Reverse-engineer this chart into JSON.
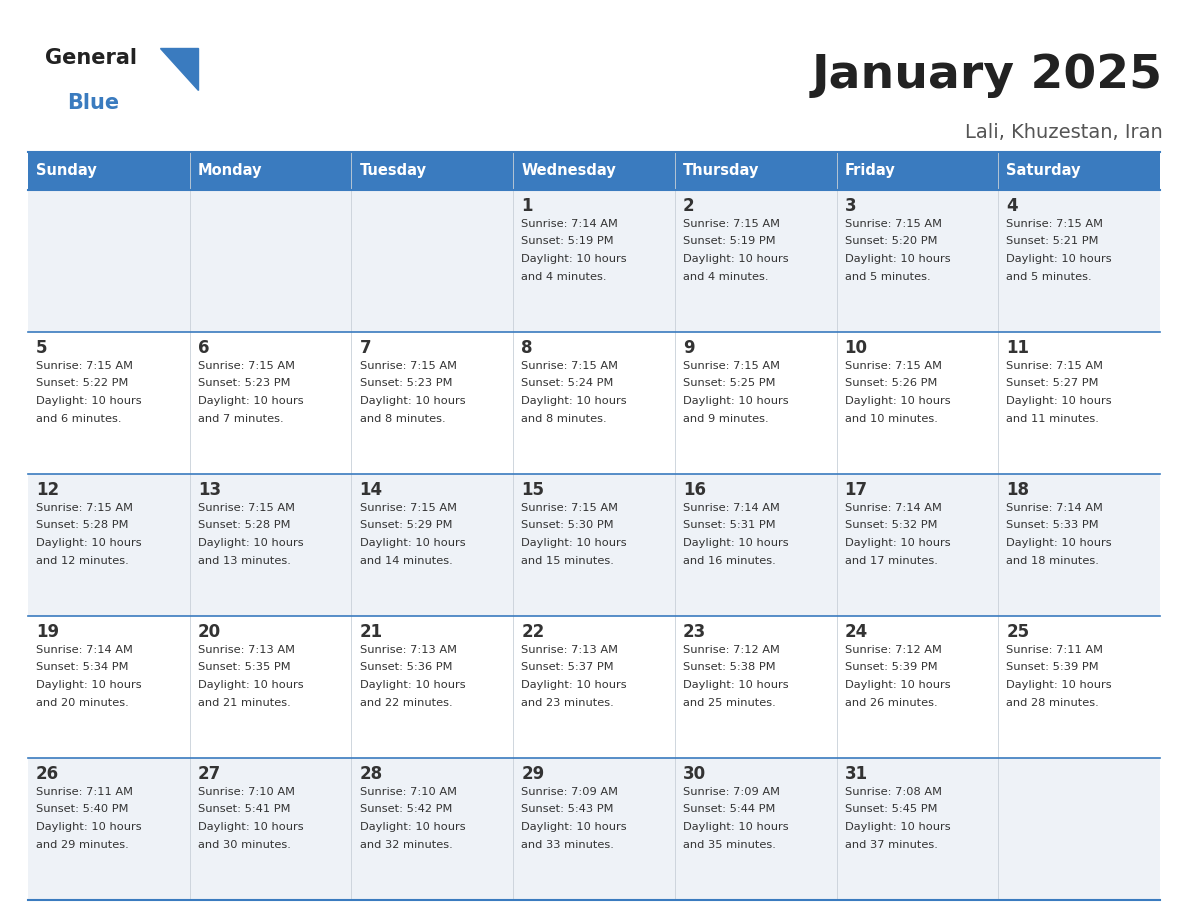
{
  "title": "January 2025",
  "subtitle": "Lali, Khuzestan, Iran",
  "days_of_week": [
    "Sunday",
    "Monday",
    "Tuesday",
    "Wednesday",
    "Thursday",
    "Friday",
    "Saturday"
  ],
  "header_bg": "#3a7bbf",
  "header_text": "#ffffff",
  "row_bg_odd": "#eef2f7",
  "row_bg_even": "#ffffff",
  "cell_text": "#333333",
  "border_color": "#3a7bbf",
  "title_color": "#222222",
  "subtitle_color": "#555555",
  "calendar_data": [
    [
      null,
      null,
      null,
      {
        "day": 1,
        "sunrise": "7:14 AM",
        "sunset": "5:19 PM",
        "daylight_line1": "Daylight: 10 hours",
        "daylight_line2": "and 4 minutes."
      },
      {
        "day": 2,
        "sunrise": "7:15 AM",
        "sunset": "5:19 PM",
        "daylight_line1": "Daylight: 10 hours",
        "daylight_line2": "and 4 minutes."
      },
      {
        "day": 3,
        "sunrise": "7:15 AM",
        "sunset": "5:20 PM",
        "daylight_line1": "Daylight: 10 hours",
        "daylight_line2": "and 5 minutes."
      },
      {
        "day": 4,
        "sunrise": "7:15 AM",
        "sunset": "5:21 PM",
        "daylight_line1": "Daylight: 10 hours",
        "daylight_line2": "and 5 minutes."
      }
    ],
    [
      {
        "day": 5,
        "sunrise": "7:15 AM",
        "sunset": "5:22 PM",
        "daylight_line1": "Daylight: 10 hours",
        "daylight_line2": "and 6 minutes."
      },
      {
        "day": 6,
        "sunrise": "7:15 AM",
        "sunset": "5:23 PM",
        "daylight_line1": "Daylight: 10 hours",
        "daylight_line2": "and 7 minutes."
      },
      {
        "day": 7,
        "sunrise": "7:15 AM",
        "sunset": "5:23 PM",
        "daylight_line1": "Daylight: 10 hours",
        "daylight_line2": "and 8 minutes."
      },
      {
        "day": 8,
        "sunrise": "7:15 AM",
        "sunset": "5:24 PM",
        "daylight_line1": "Daylight: 10 hours",
        "daylight_line2": "and 8 minutes."
      },
      {
        "day": 9,
        "sunrise": "7:15 AM",
        "sunset": "5:25 PM",
        "daylight_line1": "Daylight: 10 hours",
        "daylight_line2": "and 9 minutes."
      },
      {
        "day": 10,
        "sunrise": "7:15 AM",
        "sunset": "5:26 PM",
        "daylight_line1": "Daylight: 10 hours",
        "daylight_line2": "and 10 minutes."
      },
      {
        "day": 11,
        "sunrise": "7:15 AM",
        "sunset": "5:27 PM",
        "daylight_line1": "Daylight: 10 hours",
        "daylight_line2": "and 11 minutes."
      }
    ],
    [
      {
        "day": 12,
        "sunrise": "7:15 AM",
        "sunset": "5:28 PM",
        "daylight_line1": "Daylight: 10 hours",
        "daylight_line2": "and 12 minutes."
      },
      {
        "day": 13,
        "sunrise": "7:15 AM",
        "sunset": "5:28 PM",
        "daylight_line1": "Daylight: 10 hours",
        "daylight_line2": "and 13 minutes."
      },
      {
        "day": 14,
        "sunrise": "7:15 AM",
        "sunset": "5:29 PM",
        "daylight_line1": "Daylight: 10 hours",
        "daylight_line2": "and 14 minutes."
      },
      {
        "day": 15,
        "sunrise": "7:15 AM",
        "sunset": "5:30 PM",
        "daylight_line1": "Daylight: 10 hours",
        "daylight_line2": "and 15 minutes."
      },
      {
        "day": 16,
        "sunrise": "7:14 AM",
        "sunset": "5:31 PM",
        "daylight_line1": "Daylight: 10 hours",
        "daylight_line2": "and 16 minutes."
      },
      {
        "day": 17,
        "sunrise": "7:14 AM",
        "sunset": "5:32 PM",
        "daylight_line1": "Daylight: 10 hours",
        "daylight_line2": "and 17 minutes."
      },
      {
        "day": 18,
        "sunrise": "7:14 AM",
        "sunset": "5:33 PM",
        "daylight_line1": "Daylight: 10 hours",
        "daylight_line2": "and 18 minutes."
      }
    ],
    [
      {
        "day": 19,
        "sunrise": "7:14 AM",
        "sunset": "5:34 PM",
        "daylight_line1": "Daylight: 10 hours",
        "daylight_line2": "and 20 minutes."
      },
      {
        "day": 20,
        "sunrise": "7:13 AM",
        "sunset": "5:35 PM",
        "daylight_line1": "Daylight: 10 hours",
        "daylight_line2": "and 21 minutes."
      },
      {
        "day": 21,
        "sunrise": "7:13 AM",
        "sunset": "5:36 PM",
        "daylight_line1": "Daylight: 10 hours",
        "daylight_line2": "and 22 minutes."
      },
      {
        "day": 22,
        "sunrise": "7:13 AM",
        "sunset": "5:37 PM",
        "daylight_line1": "Daylight: 10 hours",
        "daylight_line2": "and 23 minutes."
      },
      {
        "day": 23,
        "sunrise": "7:12 AM",
        "sunset": "5:38 PM",
        "daylight_line1": "Daylight: 10 hours",
        "daylight_line2": "and 25 minutes."
      },
      {
        "day": 24,
        "sunrise": "7:12 AM",
        "sunset": "5:39 PM",
        "daylight_line1": "Daylight: 10 hours",
        "daylight_line2": "and 26 minutes."
      },
      {
        "day": 25,
        "sunrise": "7:11 AM",
        "sunset": "5:39 PM",
        "daylight_line1": "Daylight: 10 hours",
        "daylight_line2": "and 28 minutes."
      }
    ],
    [
      {
        "day": 26,
        "sunrise": "7:11 AM",
        "sunset": "5:40 PM",
        "daylight_line1": "Daylight: 10 hours",
        "daylight_line2": "and 29 minutes."
      },
      {
        "day": 27,
        "sunrise": "7:10 AM",
        "sunset": "5:41 PM",
        "daylight_line1": "Daylight: 10 hours",
        "daylight_line2": "and 30 minutes."
      },
      {
        "day": 28,
        "sunrise": "7:10 AM",
        "sunset": "5:42 PM",
        "daylight_line1": "Daylight: 10 hours",
        "daylight_line2": "and 32 minutes."
      },
      {
        "day": 29,
        "sunrise": "7:09 AM",
        "sunset": "5:43 PM",
        "daylight_line1": "Daylight: 10 hours",
        "daylight_line2": "and 33 minutes."
      },
      {
        "day": 30,
        "sunrise": "7:09 AM",
        "sunset": "5:44 PM",
        "daylight_line1": "Daylight: 10 hours",
        "daylight_line2": "and 35 minutes."
      },
      {
        "day": 31,
        "sunrise": "7:08 AM",
        "sunset": "5:45 PM",
        "daylight_line1": "Daylight: 10 hours",
        "daylight_line2": "and 37 minutes."
      },
      null
    ]
  ]
}
